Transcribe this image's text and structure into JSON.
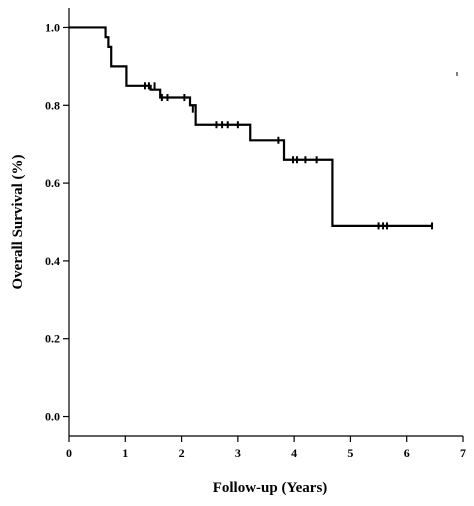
{
  "chart_data": {
    "type": "line",
    "title": "",
    "xlabel": "Follow-up (Years)",
    "ylabel": "Overall Survival (%)",
    "xlim": [
      0,
      7
    ],
    "ylim": [
      -0.05,
      1.05
    ],
    "x_ticks": [
      0,
      1,
      2,
      3,
      4,
      5,
      6,
      7
    ],
    "x_tick_labels": [
      "0",
      "1",
      "2",
      "3",
      "4",
      "5",
      "6",
      "7"
    ],
    "y_ticks": [
      0.0,
      0.2,
      0.4,
      0.6,
      0.8,
      1.0
    ],
    "y_tick_labels": [
      "0.0",
      "0.2",
      "0.4",
      "0.6",
      "0.8",
      "1.0"
    ],
    "grid": false,
    "series": [
      {
        "style": "step",
        "color": "#000000",
        "x": [
          0,
          0.65,
          0.7,
          0.75,
          1.02,
          1.45,
          1.62,
          2.15,
          2.25,
          3.22,
          3.82,
          4.68
        ],
        "y": [
          1.0,
          0.975,
          0.95,
          0.9,
          0.85,
          0.84,
          0.82,
          0.8,
          0.75,
          0.71,
          0.66,
          0.49
        ],
        "x_end": 6.45,
        "censored": [
          {
            "x": 1.35,
            "y": 0.85
          },
          {
            "x": 1.42,
            "y": 0.85
          },
          {
            "x": 1.52,
            "y": 0.85
          },
          {
            "x": 1.65,
            "y": 0.82
          },
          {
            "x": 1.75,
            "y": 0.82
          },
          {
            "x": 2.05,
            "y": 0.82
          },
          {
            "x": 2.2,
            "y": 0.79
          },
          {
            "x": 2.62,
            "y": 0.75
          },
          {
            "x": 2.72,
            "y": 0.75
          },
          {
            "x": 2.82,
            "y": 0.75
          },
          {
            "x": 3.0,
            "y": 0.75
          },
          {
            "x": 3.72,
            "y": 0.71
          },
          {
            "x": 3.98,
            "y": 0.66
          },
          {
            "x": 4.05,
            "y": 0.66
          },
          {
            "x": 4.2,
            "y": 0.66
          },
          {
            "x": 4.4,
            "y": 0.66
          },
          {
            "x": 5.5,
            "y": 0.49
          },
          {
            "x": 5.58,
            "y": 0.49
          },
          {
            "x": 5.65,
            "y": 0.49
          },
          {
            "x": 6.45,
            "y": 0.49
          }
        ]
      }
    ]
  }
}
